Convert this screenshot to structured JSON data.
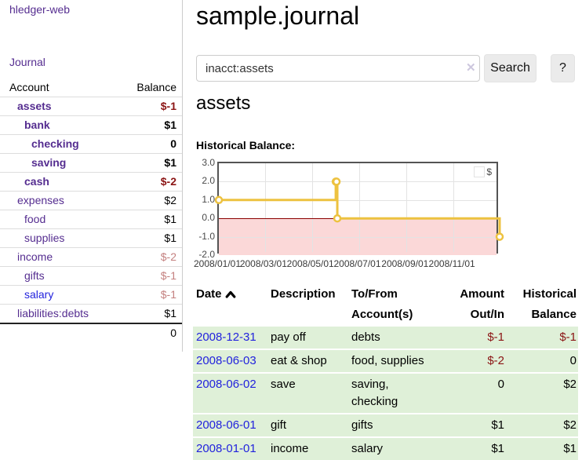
{
  "sidebar": {
    "app_title": "hledger-web",
    "journal_link": "Journal",
    "accounts_header": {
      "account": "Account",
      "balance": "Balance"
    },
    "accounts": [
      {
        "name": "assets",
        "depth": 1,
        "balance": "$-1",
        "bold": true,
        "balance_tone": "neg-dark"
      },
      {
        "name": "bank",
        "depth": 2,
        "balance": "$1",
        "bold": true,
        "balance_tone": "normal"
      },
      {
        "name": "checking",
        "depth": 3,
        "balance": "0",
        "bold": true,
        "balance_tone": "normal"
      },
      {
        "name": "saving",
        "depth": 3,
        "balance": "$1",
        "bold": true,
        "balance_tone": "normal"
      },
      {
        "name": "cash",
        "depth": 2,
        "balance": "$-2",
        "bold": true,
        "balance_tone": "neg-dark"
      },
      {
        "name": "expenses",
        "depth": 1,
        "balance": "$2",
        "bold": false,
        "balance_tone": "normal"
      },
      {
        "name": "food",
        "depth": 2,
        "balance": "$1",
        "bold": false,
        "balance_tone": "normal"
      },
      {
        "name": "supplies",
        "depth": 2,
        "balance": "$1",
        "bold": false,
        "balance_tone": "normal"
      },
      {
        "name": "income",
        "depth": 1,
        "balance": "$-2",
        "bold": false,
        "balance_tone": "neg-light"
      },
      {
        "name": "gifts",
        "depth": 2,
        "balance": "$-1",
        "bold": false,
        "balance_tone": "neg-light"
      },
      {
        "name": "salary",
        "depth": 2,
        "balance": "$-1",
        "bold": false,
        "balance_tone": "neg-light",
        "link_style": "blue"
      },
      {
        "name": "liabilities:debts",
        "depth": 1,
        "balance": "$1",
        "bold": false,
        "balance_tone": "normal"
      }
    ],
    "total": "0"
  },
  "main": {
    "title": "sample.journal",
    "search": {
      "value": "inacct:assets",
      "clear_icon": "✕",
      "button_label": "Search",
      "help_label": "?"
    },
    "account_heading": "assets",
    "chart_label": "Historical Balance:"
  },
  "chart_data": {
    "type": "line",
    "title": "Historical Balance",
    "step": true,
    "legend_position": "top-right",
    "grid": true,
    "series": [
      {
        "name": "$",
        "color": "#edc240",
        "points": [
          {
            "date": "2008-01-01",
            "value": 1
          },
          {
            "date": "2008-06-01",
            "value": 2
          },
          {
            "date": "2008-06-02",
            "value": 2
          },
          {
            "date": "2008-06-03",
            "value": 0
          },
          {
            "date": "2008-12-31",
            "value": -1
          }
        ]
      }
    ],
    "x_ticks": [
      {
        "date": "2008-01-01",
        "label": "2008/01/01"
      },
      {
        "date": "2008-03-01",
        "label": "2008/03/01"
      },
      {
        "date": "2008-05-01",
        "label": "2008/05/01"
      },
      {
        "date": "2008-07-01",
        "label": "2008/07/01"
      },
      {
        "date": "2008-09-01",
        "label": "2008/09/01"
      },
      {
        "date": "2008-11-01",
        "label": "2008/11/01"
      }
    ],
    "y_ticks": [
      {
        "value": 3,
        "label": "3.0"
      },
      {
        "value": 2,
        "label": "2.0"
      },
      {
        "value": 1,
        "label": "1.0"
      },
      {
        "value": 0,
        "label": "0.0"
      },
      {
        "value": -1,
        "label": "-1.0"
      },
      {
        "value": -2,
        "label": "-2.0"
      }
    ],
    "xlim": [
      "2008-01-01",
      "2008-12-31"
    ],
    "ylim": [
      -2,
      3
    ],
    "zero_line_color": "#8b0000",
    "negative_region_color": "#fbd8d8",
    "line_color": "#edc240"
  },
  "transactions": {
    "headers": [
      {
        "label": "Date",
        "icon": "chevron-up-icon",
        "align": "left"
      },
      {
        "label": "Description",
        "align": "left"
      },
      {
        "label": "To/From Account(s)",
        "align": "left"
      },
      {
        "label": "Amount Out/In",
        "align": "right"
      },
      {
        "label": "Historical Balance",
        "align": "right"
      }
    ],
    "rows": [
      {
        "date": "2008-12-31",
        "description": "pay off",
        "accounts": "debts",
        "amount": "$-1",
        "balance": "$-1"
      },
      {
        "date": "2008-06-03",
        "description": "eat & shop",
        "accounts": "food, supplies",
        "amount": "$-2",
        "balance": "0"
      },
      {
        "date": "2008-06-02",
        "description": "save",
        "accounts": "saving, checking",
        "amount": "0",
        "balance": "$2"
      },
      {
        "date": "2008-06-01",
        "description": "gift",
        "accounts": "gifts",
        "amount": "$1",
        "balance": "$2"
      },
      {
        "date": "2008-01-01",
        "description": "income",
        "accounts": "salary",
        "amount": "$1",
        "balance": "$1"
      }
    ]
  }
}
